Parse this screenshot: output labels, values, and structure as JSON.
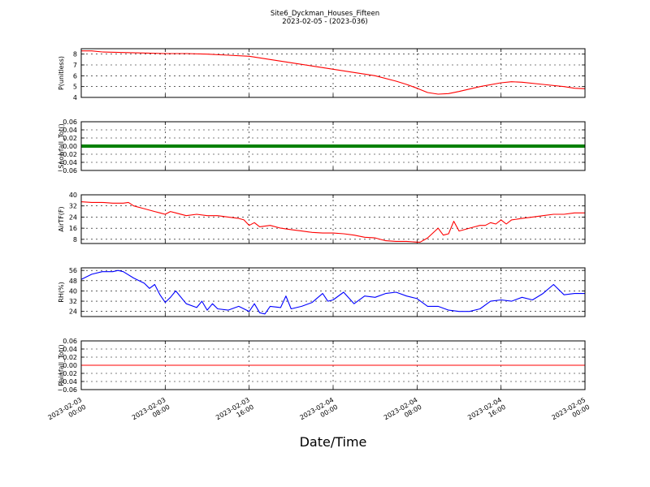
{
  "figure": {
    "title": "Site6_Dyckman_Houses_Fifteen",
    "subtitle": "2023-02-05 - (2023-036)",
    "xlabel": "Date/Time"
  },
  "chart_data": [
    {
      "type": "line",
      "ylabel": "P(unitless)",
      "ylim": [
        4,
        8.5
      ],
      "yticks": [
        "4",
        "5",
        "6",
        "7",
        "8"
      ],
      "xlim": [
        0,
        48
      ],
      "grid": true,
      "color": "#ff0000",
      "series": [
        {
          "x": [
            0,
            1,
            2,
            4,
            6,
            8,
            10,
            12,
            14,
            16,
            18,
            20,
            22,
            24,
            26,
            28,
            30,
            31,
            32,
            33,
            34,
            35,
            36,
            38,
            40,
            41,
            42,
            44,
            46,
            47,
            48
          ],
          "y": [
            8.3,
            8.3,
            8.2,
            8.15,
            8.1,
            8.05,
            8.05,
            8.0,
            7.9,
            7.8,
            7.5,
            7.2,
            6.9,
            6.6,
            6.3,
            6.0,
            5.5,
            5.2,
            4.85,
            4.45,
            4.3,
            4.35,
            4.55,
            5.0,
            5.35,
            5.45,
            5.4,
            5.2,
            5.0,
            4.85,
            4.8
          ]
        }
      ]
    },
    {
      "type": "line",
      "ylabel": "Snowfall_Tot()",
      "ylim": [
        -0.06,
        0.06
      ],
      "yticks": [
        "−0.06",
        "−0.04",
        "−0.02",
        "0.00",
        "0.02",
        "0.04",
        "0.06"
      ],
      "xlim": [
        0,
        48
      ],
      "grid": true,
      "color": "#008000",
      "series": [
        {
          "x": [
            0,
            48
          ],
          "y": [
            0,
            0
          ]
        }
      ]
    },
    {
      "type": "line",
      "ylabel": "AirTF(F)",
      "ylim": [
        5,
        40
      ],
      "yticks": [
        "8",
        "16",
        "24",
        "32",
        "40"
      ],
      "xlim": [
        0,
        48
      ],
      "grid": true,
      "color": "#ff0000",
      "series": [
        {
          "x": [
            0,
            1,
            2,
            3,
            4,
            4.5,
            5,
            6,
            7,
            7.5,
            8,
            8.5,
            9,
            10,
            11,
            12,
            13,
            14,
            15,
            15.5,
            16,
            16.5,
            17,
            18,
            19,
            20,
            21,
            22,
            23,
            24,
            25,
            26,
            27,
            28,
            29,
            30,
            31,
            32,
            32.3,
            33,
            34,
            34.5,
            35,
            35.5,
            36,
            36.5,
            37,
            37.5,
            38,
            38.5,
            39,
            39.5,
            40,
            40.5,
            41,
            42,
            43,
            44,
            45,
            46,
            47,
            48
          ],
          "y": [
            35,
            34.5,
            34.5,
            34,
            34,
            34.5,
            32,
            30,
            28,
            27,
            26,
            28,
            27,
            25,
            26,
            25,
            25,
            24,
            23,
            22,
            18,
            20,
            17,
            18,
            16,
            15,
            14,
            13,
            12.5,
            12.5,
            12,
            11,
            9.5,
            9,
            7,
            6.5,
            6.5,
            6,
            6,
            9,
            16,
            11,
            12,
            21,
            14,
            15,
            16,
            17,
            18,
            18,
            20,
            19,
            22,
            19,
            22,
            23,
            24,
            25,
            26,
            26,
            27,
            27
          ]
        }
      ]
    },
    {
      "type": "line",
      "ylabel": "RH(%)",
      "ylim": [
        20,
        58
      ],
      "yticks": [
        "24",
        "32",
        "40",
        "48",
        "56"
      ],
      "xlim": [
        0,
        48
      ],
      "grid": true,
      "color": "#0000ff",
      "series": [
        {
          "x": [
            0,
            1,
            2,
            3,
            3.5,
            4,
            5,
            5.5,
            6,
            6.5,
            7,
            7.5,
            8,
            8.5,
            9,
            10,
            11,
            11.5,
            12,
            12.5,
            13,
            14,
            15,
            16,
            16.5,
            17,
            17.5,
            18,
            19,
            19.5,
            20,
            21,
            22,
            23,
            23.5,
            24,
            25,
            26,
            27,
            28,
            29,
            30,
            31,
            32,
            33,
            34,
            35,
            36,
            37,
            38,
            39,
            40,
            41,
            42,
            43,
            44,
            45,
            46,
            47,
            48
          ],
          "y": [
            49,
            53,
            55,
            55,
            56,
            55,
            50,
            48,
            46,
            42,
            45,
            37,
            31,
            35,
            40,
            30,
            27,
            32,
            25,
            30,
            26,
            25,
            28,
            24,
            30,
            23,
            22,
            28,
            27,
            36,
            26,
            28,
            31,
            38,
            32,
            33,
            39,
            30,
            36,
            35,
            38,
            39,
            36,
            34,
            28,
            28,
            25,
            24,
            24,
            26,
            32,
            33,
            32,
            35,
            33,
            38,
            45,
            37,
            38,
            38
          ]
        }
      ]
    },
    {
      "type": "line",
      "ylabel": "Rainfall_Tot()",
      "ylim": [
        -0.06,
        0.06
      ],
      "yticks": [
        "−0.06",
        "−0.04",
        "−0.02",
        "0.00",
        "0.02",
        "0.04",
        "0.06"
      ],
      "xlim": [
        0,
        48
      ],
      "grid": true,
      "color": "#ff0000",
      "series": [
        {
          "x": [
            0,
            48
          ],
          "y": [
            0,
            0
          ]
        }
      ]
    }
  ],
  "x_ticks": [
    {
      "x": 0,
      "line1": "2023-02-03",
      "line2": "00:00"
    },
    {
      "x": 8,
      "line1": "2023-02-03",
      "line2": "08:00"
    },
    {
      "x": 16,
      "line1": "2023-02-03",
      "line2": "16:00"
    },
    {
      "x": 24,
      "line1": "2023-02-04",
      "line2": "00:00"
    },
    {
      "x": 32,
      "line1": "2023-02-04",
      "line2": "08:00"
    },
    {
      "x": 40,
      "line1": "2023-02-04",
      "line2": "16:00"
    },
    {
      "x": 48,
      "line1": "2023-02-05",
      "line2": "00:00"
    }
  ]
}
